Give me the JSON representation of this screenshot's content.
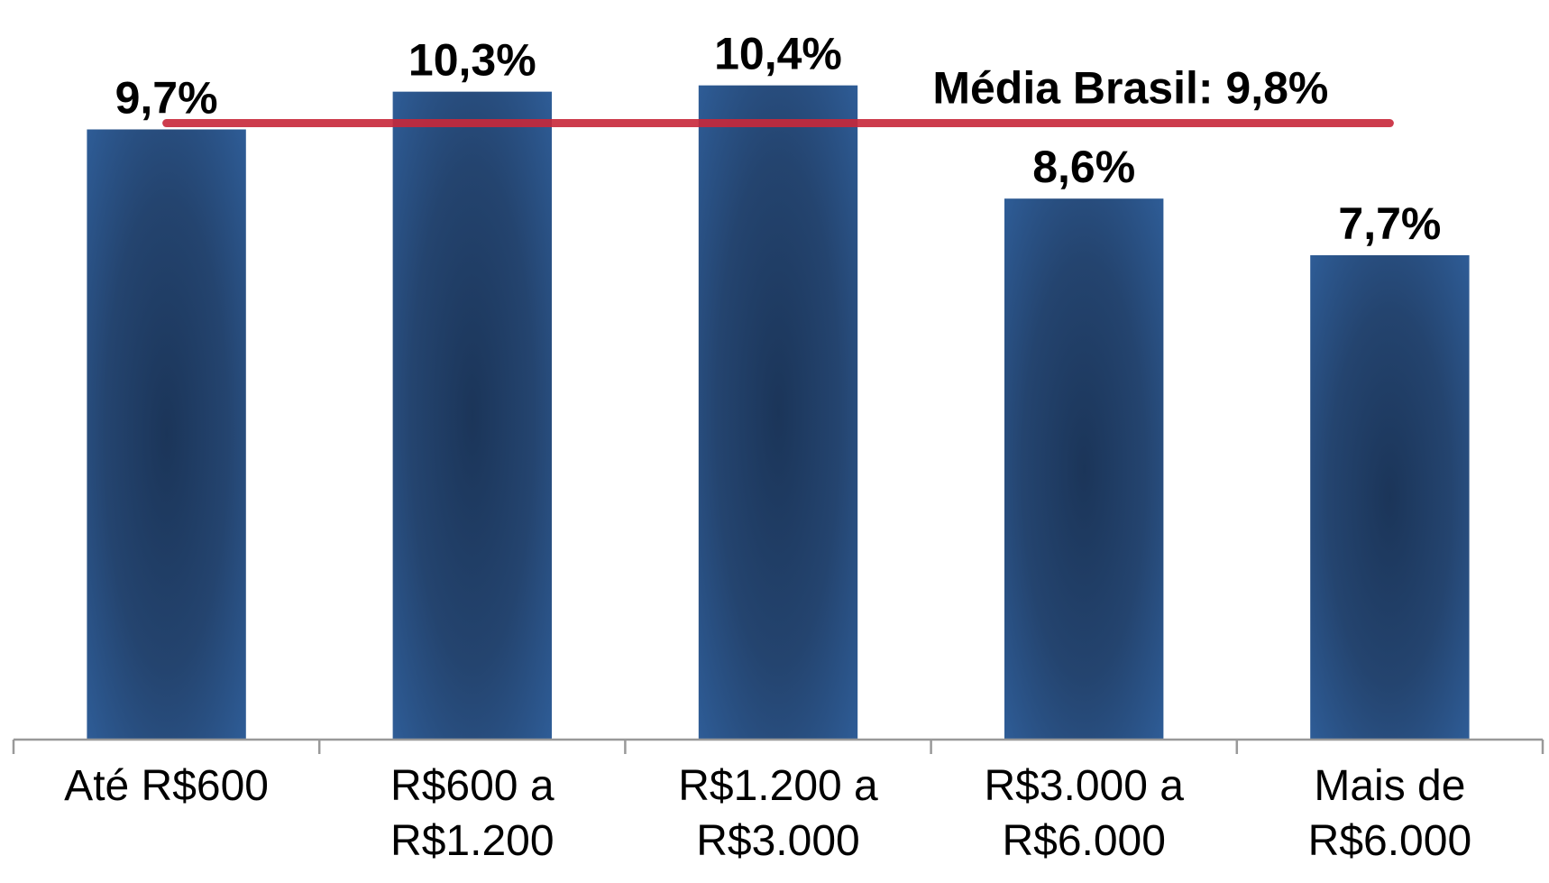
{
  "chart_data": {
    "type": "bar",
    "categories": [
      [
        "Até R$600"
      ],
      [
        "R$600 a",
        "R$1.200"
      ],
      [
        "R$1.200 a",
        "R$3.000"
      ],
      [
        "R$3.000 a",
        "R$6.000"
      ],
      [
        "Mais de",
        "R$6.000"
      ]
    ],
    "values": [
      9.7,
      10.3,
      10.4,
      8.6,
      7.7
    ],
    "value_labels": [
      "9,7%",
      "10,3%",
      "10,4%",
      "8,6%",
      "7,7%"
    ],
    "color": "#2e5a93",
    "ylim": [
      0,
      11.7
    ],
    "reference_line": {
      "value": 9.8,
      "label": "Média Brasil: 9,8%",
      "color": "#c8283a"
    }
  }
}
